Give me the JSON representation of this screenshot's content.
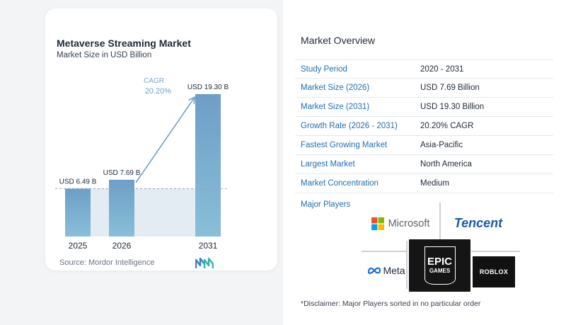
{
  "chart_data": {
    "type": "bar",
    "title": "Metaverse Streaming Market",
    "subtitle": "Market Size in USD Billion",
    "categories": [
      "2025",
      "2026",
      "2031"
    ],
    "values": [
      6.49,
      7.69,
      19.3
    ],
    "value_labels": [
      "USD 6.49 B",
      "USD 7.69 B",
      "USD 19.30 B"
    ],
    "cagr_label": "CAGR",
    "cagr_value": "20.20%",
    "ylim": [
      0,
      21.5
    ],
    "grid": false,
    "colors": {
      "bar_top": "#6e9ec7",
      "bar_bottom": "#88bfd8",
      "shade": "#e3ecf3",
      "arrow": "#6e9ec7",
      "dash": "#94a3b8",
      "cagr": "#7ea6c9"
    }
  },
  "source": "Source:  Mordor Intelligence",
  "overview": {
    "title": "Market Overview",
    "rows": [
      {
        "label": "Study Period",
        "value": "2020 - 2031"
      },
      {
        "label": "Market Size (2026)",
        "value": "USD 7.69 Billion"
      },
      {
        "label": "Market Size (2031)",
        "value": "USD 19.30 Billion"
      },
      {
        "label": "Growth Rate (2026 - 2031)",
        "value": "20.20% CAGR"
      },
      {
        "label": "Fastest Growing Market",
        "value": "Asia-Pacific"
      },
      {
        "label": "Largest Market",
        "value": "North America"
      },
      {
        "label": "Market Concentration",
        "value": "Medium"
      }
    ]
  },
  "players": {
    "label": "Major Players",
    "microsoft": "Microsoft",
    "tencent": "Tencent",
    "meta": "Meta",
    "epic_top": "EPIC",
    "epic_bottom": "GAMES",
    "roblox": "ROBLOX"
  },
  "disclaimer": "*Disclaimer: Major Players sorted in no particular order"
}
